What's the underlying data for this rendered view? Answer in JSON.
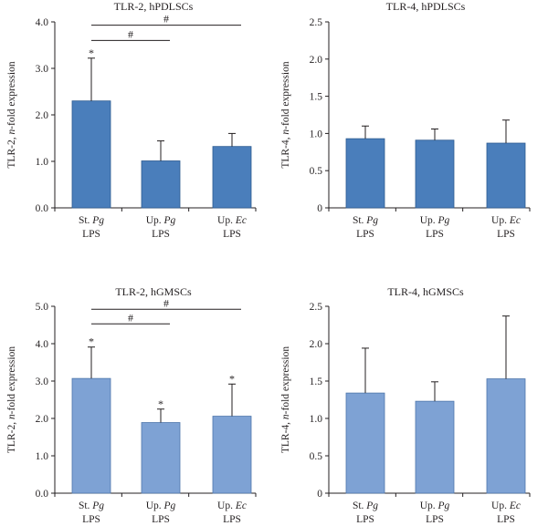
{
  "colors": {
    "top_bar": "#4a7ebb",
    "top_edge": "#2c5a90",
    "bottom_bar": "#7ea2d4",
    "bottom_edge": "#4f77ab",
    "axis": "#231f20"
  },
  "chart_data": [
    {
      "id": "tlr2-hpdlscs",
      "type": "bar",
      "title": "TLR-2, hPDLSCs",
      "ylabel": "TLR-2, n-fold expression",
      "ylabel_prefix": "TLR-2, ",
      "ylabel_italic": "n",
      "ylabel_suffix": "-fold expression",
      "ylim": [
        0,
        4.0
      ],
      "yticks": [
        "0.0",
        "1.0",
        "2.0",
        "3.0",
        "4.0"
      ],
      "categories": [
        {
          "line1_prefix": "St. ",
          "line1_italic": "Pg",
          "line2": "LPS"
        },
        {
          "line1_prefix": "Up. ",
          "line1_italic": "Pg",
          "line2": "LPS"
        },
        {
          "line1_prefix": "Up. ",
          "line1_italic": "Ec",
          "line2": "LPS"
        }
      ],
      "values": [
        2.3,
        1.01,
        1.32
      ],
      "errors": [
        0.92,
        0.43,
        0.28
      ],
      "star_marks": [
        "*",
        "",
        ""
      ],
      "brackets": [
        {
          "from": 0,
          "to": 1,
          "label": "#",
          "y": 3.6
        },
        {
          "from": 0,
          "to": 2,
          "label": "#",
          "y": 3.93
        }
      ]
    },
    {
      "id": "tlr4-hpdlscs",
      "type": "bar",
      "title": "TLR-4, hPDLSCs",
      "ylabel": "TLR-4, n-fold expression",
      "ylabel_prefix": "TLR-4, ",
      "ylabel_italic": "n",
      "ylabel_suffix": "-fold expression",
      "ylim": [
        0,
        2.5
      ],
      "yticks": [
        "0",
        "0.5",
        "1.0",
        "1.5",
        "2.0",
        "2.5"
      ],
      "categories": [
        {
          "line1_prefix": "St. ",
          "line1_italic": "Pg",
          "line2": "LPS"
        },
        {
          "line1_prefix": "Up. ",
          "line1_italic": "Pg",
          "line2": "LPS"
        },
        {
          "line1_prefix": "Up. ",
          "line1_italic": "Ec",
          "line2": "LPS"
        }
      ],
      "values": [
        0.93,
        0.91,
        0.87
      ],
      "errors": [
        0.17,
        0.15,
        0.31
      ],
      "star_marks": [
        "",
        "",
        ""
      ],
      "brackets": []
    },
    {
      "id": "tlr2-hgmscs",
      "type": "bar",
      "title": "TLR-2, hGMSCs",
      "ylabel": "TLR-2, n-fold expression",
      "ylabel_prefix": "TLR-2, ",
      "ylabel_italic": "n",
      "ylabel_suffix": "-fold expression",
      "ylim": [
        0,
        5.0
      ],
      "yticks": [
        "0.0",
        "1.0",
        "2.0",
        "3.0",
        "4.0",
        "5.0"
      ],
      "categories": [
        {
          "line1_prefix": "St. ",
          "line1_italic": "Pg",
          "line2": "LPS"
        },
        {
          "line1_prefix": "Up. ",
          "line1_italic": "Pg",
          "line2": "LPS"
        },
        {
          "line1_prefix": "Up. ",
          "line1_italic": "Ec",
          "line2": "LPS"
        }
      ],
      "values": [
        3.07,
        1.89,
        2.06
      ],
      "errors": [
        0.84,
        0.36,
        0.86
      ],
      "star_marks": [
        "*",
        "*",
        "*"
      ],
      "brackets": [
        {
          "from": 0,
          "to": 1,
          "label": "#",
          "y": 4.53
        },
        {
          "from": 0,
          "to": 2,
          "label": "#",
          "y": 4.92
        }
      ]
    },
    {
      "id": "tlr4-hgmscs",
      "type": "bar",
      "title": "TLR-4, hGMSCs",
      "ylabel": "TLR-4, n-fold expression",
      "ylabel_prefix": "TLR-4, ",
      "ylabel_italic": "n",
      "ylabel_suffix": "-fold expression",
      "ylim": [
        0,
        2.5
      ],
      "yticks": [
        "0",
        "0.5",
        "1.0",
        "1.5",
        "2.0",
        "2.5"
      ],
      "categories": [
        {
          "line1_prefix": "St. ",
          "line1_italic": "Pg",
          "line2": "LPS"
        },
        {
          "line1_prefix": "Up. ",
          "line1_italic": "Pg",
          "line2": "LPS"
        },
        {
          "line1_prefix": "Up. ",
          "line1_italic": "Ec",
          "line2": "LPS"
        }
      ],
      "values": [
        1.34,
        1.23,
        1.53
      ],
      "errors": [
        0.6,
        0.26,
        0.84
      ],
      "star_marks": [
        "",
        "",
        ""
      ],
      "brackets": []
    }
  ]
}
